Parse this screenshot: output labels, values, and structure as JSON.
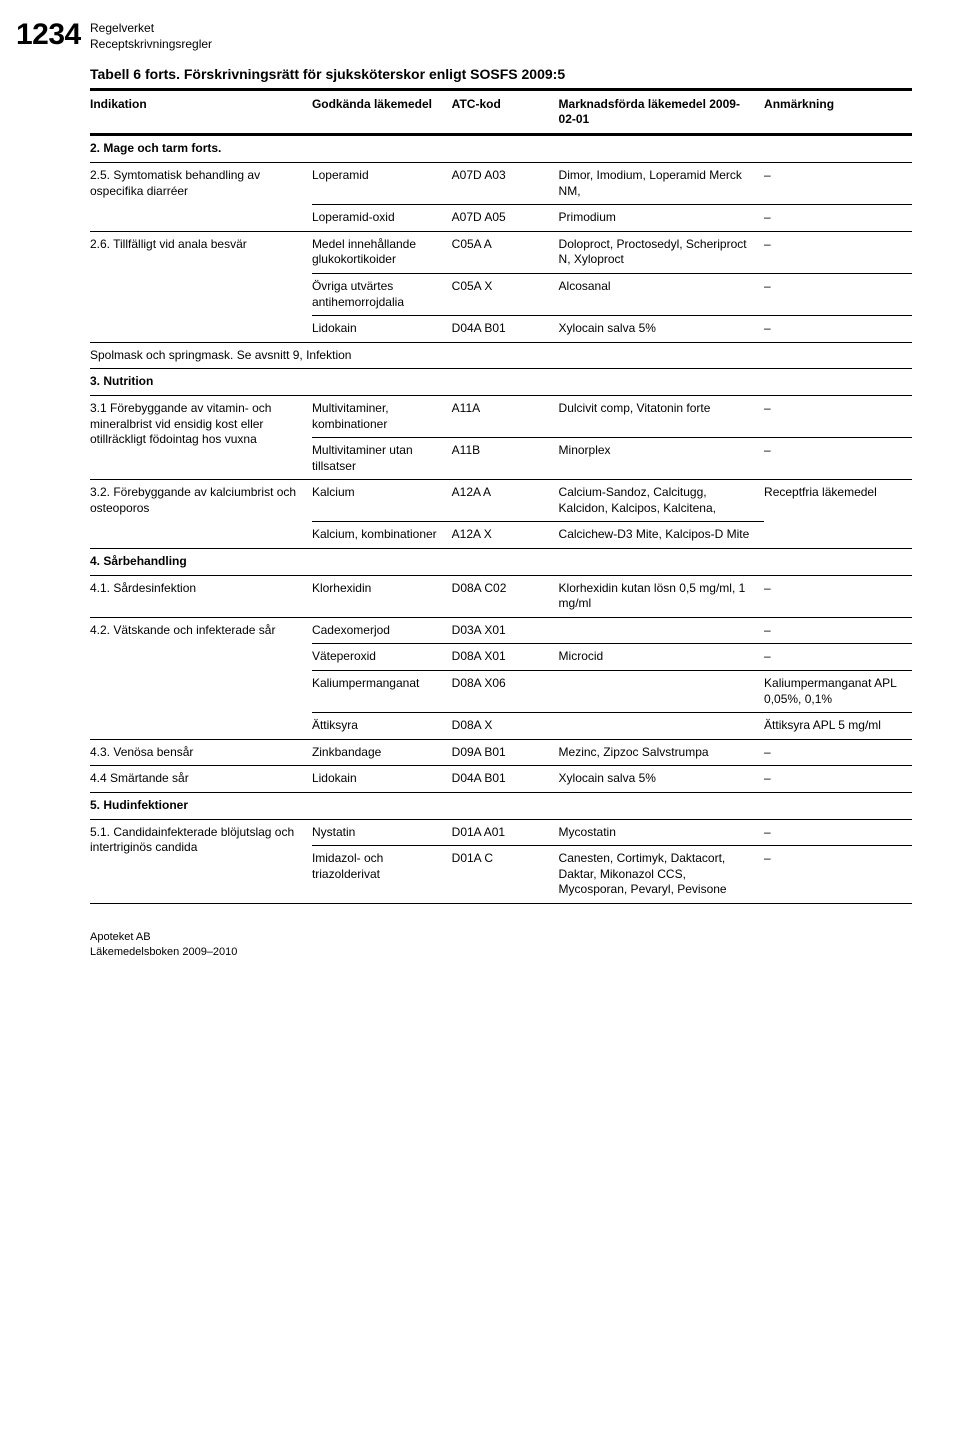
{
  "page_number": "1234",
  "header": {
    "line1": "Regelverket",
    "line2": "Receptskrivningsregler"
  },
  "table_title": "Tabell 6 forts. Förskrivningsrätt för sjuksköterskor enligt SOSFS 2009:5",
  "columns": {
    "c1": "Indikation",
    "c2": "Godkända läkemedel",
    "c3": "ATC-kod",
    "c4": "Marknadsförda läkemedel 2009-02-01",
    "c5": "Anmärkning"
  },
  "rows": [
    {
      "type": "section",
      "c1": "2. Mage och tarm forts."
    },
    {
      "type": "sub-first",
      "c1": "2.5. Symtomatisk behandling av ospecifika diarréer",
      "c2": "Loperamid",
      "c3": "A07D A03",
      "c4": "Dimor, Imodium, Loperamid Merck NM,",
      "c5": "–"
    },
    {
      "type": "sub-last",
      "c2": "Loperamid-oxid",
      "c3": "A07D A05",
      "c4": "Primodium",
      "c5": "–"
    },
    {
      "type": "sub-first",
      "c1": "2.6. Tillfälligt vid anala besvär",
      "c2": "Medel innehållande glukokortikoider",
      "c3": "C05A A",
      "c4": "Doloproct, Proctosedyl, Scheriproct N, Xyloproct",
      "c5": "–"
    },
    {
      "type": "sub-mid",
      "c2": "Övriga utvärtes antihemorrojdalia",
      "c3": "C05A X",
      "c4": "Alcosanal",
      "c5": "–"
    },
    {
      "type": "sub-last",
      "c2": "Lidokain",
      "c3": "D04A B01",
      "c4": "Xylocain salva 5%",
      "c5": "–"
    },
    {
      "type": "section",
      "c1": "Spolmask och springmask. Se avsnitt 9, Infektion",
      "weight": "normal"
    },
    {
      "type": "section",
      "c1": "3. Nutrition"
    },
    {
      "type": "sub-first",
      "c1": "3.1 Förebyggande av vitamin- och mineralbrist vid ensidig kost eller otillräckligt födointag hos vuxna",
      "c2": "Multivitaminer, kombinationer",
      "c3": "A11A",
      "c4": "Dulcivit comp, Vitatonin forte",
      "c5": "–"
    },
    {
      "type": "sub-last",
      "c2": "Multivitaminer utan tillsatser",
      "c3": "A11B",
      "c4": "Minorplex",
      "c5": "–"
    },
    {
      "type": "sub-first",
      "c1": "3.2. Förebyggande av kalciumbrist och osteoporos",
      "c2": "Kalcium",
      "c3": "A12A A",
      "c4": "Calcium-Sandoz, Calcitugg, Kalcidon, Kalcipos, Kalcitena,",
      "c5": "Receptfria läkemedel",
      "c5_rowspan": 2
    },
    {
      "type": "sub-last",
      "c2": "Kalcium, kombinationer",
      "c3": "A12A X",
      "c4": "Calcichew-D3 Mite, Kalcipos-D Mite"
    },
    {
      "type": "section",
      "c1": "4. Sårbehandling"
    },
    {
      "type": "single",
      "c1": "4.1. Sårdesinfektion",
      "c2": "Klorhexidin",
      "c3": "D08A C02",
      "c4": "Klorhexidin kutan lösn 0,5 mg/ml, 1 mg/ml",
      "c5": "–"
    },
    {
      "type": "sub-first",
      "c1": "4.2. Vätskande och infekterade sår",
      "c2": "Cadexomerjod",
      "c3": "D03A X01",
      "c4": "",
      "c5": "–"
    },
    {
      "type": "sub-mid",
      "c2": "Väteperoxid",
      "c3": "D08A X01",
      "c4": "Microcid",
      "c5": "–"
    },
    {
      "type": "sub-mid",
      "c2": "Kaliumpermanganat",
      "c3": "D08A X06",
      "c4": "",
      "c5": "Kaliumpermanganat APL 0,05%, 0,1%"
    },
    {
      "type": "sub-last",
      "c2": "Ättiksyra",
      "c3": "D08A X",
      "c4": "",
      "c5": "Ättiksyra APL 5 mg/ml"
    },
    {
      "type": "single",
      "c1": "4.3. Venösa bensår",
      "c2": "Zinkbandage",
      "c3": "D09A B01",
      "c4": "Mezinc, Zipzoc Salvstrumpa",
      "c5": "–"
    },
    {
      "type": "single",
      "c1": "4.4 Smärtande sår",
      "c2": "Lidokain",
      "c3": "D04A B01",
      "c4": "Xylocain salva 5%",
      "c5": "–"
    },
    {
      "type": "section",
      "c1": "5. Hudinfektioner"
    },
    {
      "type": "sub-first",
      "c1": "5.1. Candidainfekterade blöjutslag och intertriginös candida",
      "c2": "Nystatin",
      "c3": "D01A A01",
      "c4": "Mycostatin",
      "c5": "–"
    },
    {
      "type": "sub-last",
      "c2": "Imidazol- och triazolderivat",
      "c3": "D01A C",
      "c4": "Canesten, Cortimyk, Daktacort, Daktar, Mikonazol CCS, Mycosporan, Pevaryl, Pevisone",
      "c5": "–"
    }
  ],
  "footer": {
    "line1": "Apoteket AB",
    "line2": "Läkemedelsboken 2009–2010"
  }
}
